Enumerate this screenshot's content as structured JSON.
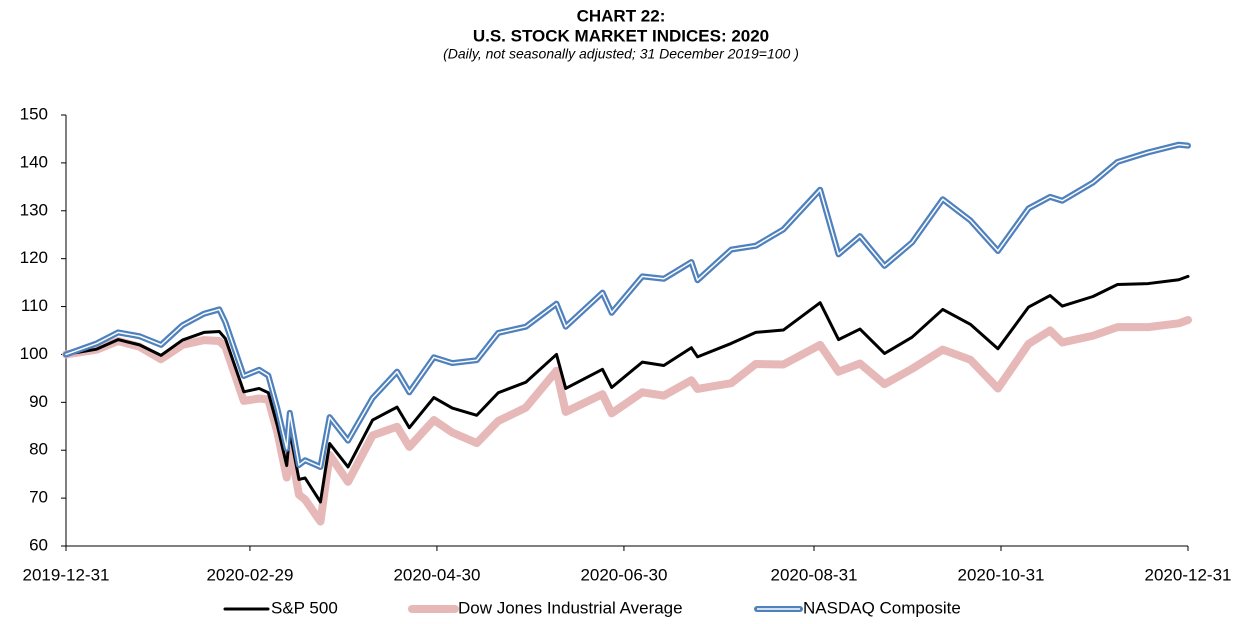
{
  "chart_data": {
    "type": "line",
    "title": [
      "CHART 22:",
      "U.S. STOCK MARKET INDICES: 2020"
    ],
    "subtitle": "(Daily, not seasonally adjusted; 31 December 2019=100 )",
    "x": [
      "2019-12-31",
      "2020-01-10",
      "2020-01-17",
      "2020-01-24",
      "2020-01-31",
      "2020-02-07",
      "2020-02-14",
      "2020-02-19",
      "2020-02-21",
      "2020-02-27",
      "2020-03-03",
      "2020-03-06",
      "2020-03-09",
      "2020-03-12",
      "2020-03-13",
      "2020-03-16",
      "2020-03-18",
      "2020-03-23",
      "2020-03-26",
      "2020-04-01",
      "2020-04-09",
      "2020-04-17",
      "2020-04-21",
      "2020-04-29",
      "2020-05-05",
      "2020-05-13",
      "2020-05-20",
      "2020-05-29",
      "2020-06-08",
      "2020-06-11",
      "2020-06-23",
      "2020-06-26",
      "2020-07-06",
      "2020-07-13",
      "2020-07-22",
      "2020-07-24",
      "2020-08-04",
      "2020-08-12",
      "2020-08-21",
      "2020-09-02",
      "2020-09-08",
      "2020-09-15",
      "2020-09-23",
      "2020-10-02",
      "2020-10-12",
      "2020-10-21",
      "2020-10-30",
      "2020-11-09",
      "2020-11-16",
      "2020-11-20",
      "2020-11-30",
      "2020-12-08",
      "2020-12-18",
      "2020-12-28",
      "2020-12-31"
    ],
    "series": [
      {
        "name": "S&P 500",
        "color": "#000000",
        "values": [
          100,
          101.1,
          103.1,
          102.0,
          99.8,
          103.0,
          104.6,
          104.8,
          103.3,
          92.2,
          92.9,
          92.0,
          85.0,
          76.8,
          83.9,
          73.9,
          74.2,
          69.2,
          81.4,
          76.5,
          86.3,
          89.0,
          84.7,
          91.0,
          88.8,
          87.3,
          92.0,
          94.2,
          100.0,
          92.9,
          96.9,
          93.1,
          98.4,
          97.7,
          101.4,
          99.5,
          102.3,
          104.6,
          105.1,
          110.8,
          103.1,
          105.3,
          100.2,
          103.6,
          109.4,
          106.3,
          101.2,
          109.9,
          112.3,
          110.1,
          112.1,
          114.6,
          114.8,
          115.6,
          116.3
        ]
      },
      {
        "name": "Dow Jones Industrial Average",
        "color": "#e6b8b7",
        "values": [
          100,
          101.0,
          102.8,
          101.6,
          99.0,
          102.0,
          103.0,
          102.8,
          101.6,
          90.3,
          90.8,
          90.6,
          83.6,
          74.3,
          81.2,
          70.7,
          69.7,
          65.1,
          79.0,
          73.4,
          83.1,
          84.9,
          80.7,
          86.3,
          83.7,
          81.5,
          86.1,
          88.9,
          96.6,
          88.0,
          91.7,
          87.7,
          92.1,
          91.4,
          94.6,
          92.8,
          94.0,
          98.0,
          97.9,
          102.0,
          96.4,
          98.1,
          93.8,
          97.0,
          101.0,
          98.9,
          92.9,
          102.2,
          105.0,
          102.5,
          103.9,
          105.7,
          105.7,
          106.5,
          107.2
        ]
      },
      {
        "name": "NASDAQ Composite",
        "color": "#4f81bd",
        "values": [
          100,
          102.3,
          104.6,
          103.8,
          102.0,
          106.1,
          108.5,
          109.4,
          106.7,
          95.5,
          96.8,
          95.6,
          88.6,
          80.3,
          87.8,
          76.9,
          77.9,
          76.5,
          86.9,
          82.0,
          90.9,
          96.4,
          92.1,
          99.4,
          98.2,
          98.8,
          104.5,
          105.8,
          110.6,
          105.8,
          112.9,
          108.7,
          116.3,
          115.8,
          119.3,
          115.5,
          121.9,
          122.7,
          126.1,
          134.4,
          120.9,
          124.7,
          118.5,
          123.4,
          132.4,
          128.0,
          121.6,
          130.5,
          132.9,
          132.1,
          135.9,
          140.2,
          142.2,
          143.8,
          143.6
        ]
      }
    ],
    "xlim": [
      "2019-12-31",
      "2020-12-31"
    ],
    "xticks": [
      "2019-12-31",
      "2020-02-29",
      "2020-04-30",
      "2020-06-30",
      "2020-08-31",
      "2020-10-31",
      "2020-12-31"
    ],
    "ylim": [
      60,
      150
    ],
    "yticks": [
      60,
      70,
      80,
      90,
      100,
      110,
      120,
      130,
      140,
      150
    ],
    "legend": "bottom"
  }
}
